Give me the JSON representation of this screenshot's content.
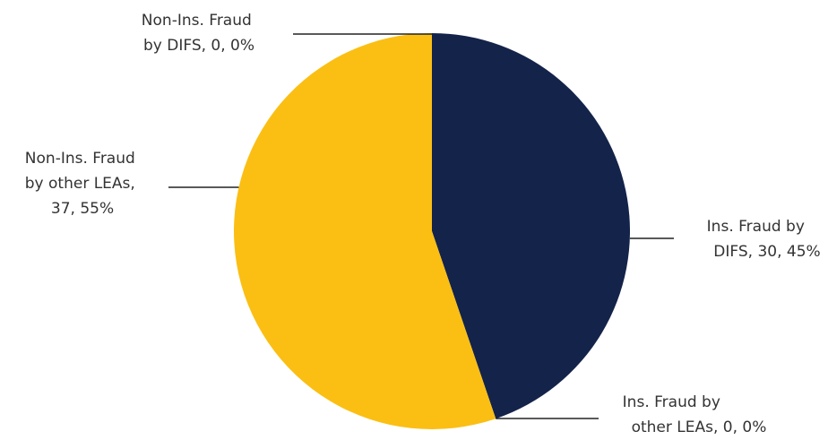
{
  "chart_data": {
    "type": "pie",
    "title": "",
    "start": "top",
    "direction": "clockwise",
    "slices": [
      {
        "name": "Ins. Fraud by DIFS",
        "value": 30,
        "percent": "45%",
        "color": "#14234a",
        "label_lines": [
          "Ins. Fraud by",
          "DIFS, 30, 45%"
        ]
      },
      {
        "name": "Ins. Fraud by other LEAs",
        "value": 0,
        "percent": "0%",
        "color": "#2e4a8a",
        "label_lines": [
          "Ins. Fraud by",
          "other LEAs, 0, 0%"
        ]
      },
      {
        "name": "Non-Ins. Fraud by other LEAs",
        "value": 37,
        "percent": "55%",
        "color": "#fbbf13",
        "label_lines": [
          "Non-Ins. Fraud",
          "by other LEAs,",
          "37, 55%"
        ]
      },
      {
        "name": "Non-Ins. Fraud by DIFS",
        "value": 0,
        "percent": "0%",
        "color": "#c0c0c0",
        "label_lines": [
          "Non-Ins. Fraud",
          "by DIFS, 0, 0%"
        ]
      }
    ]
  }
}
